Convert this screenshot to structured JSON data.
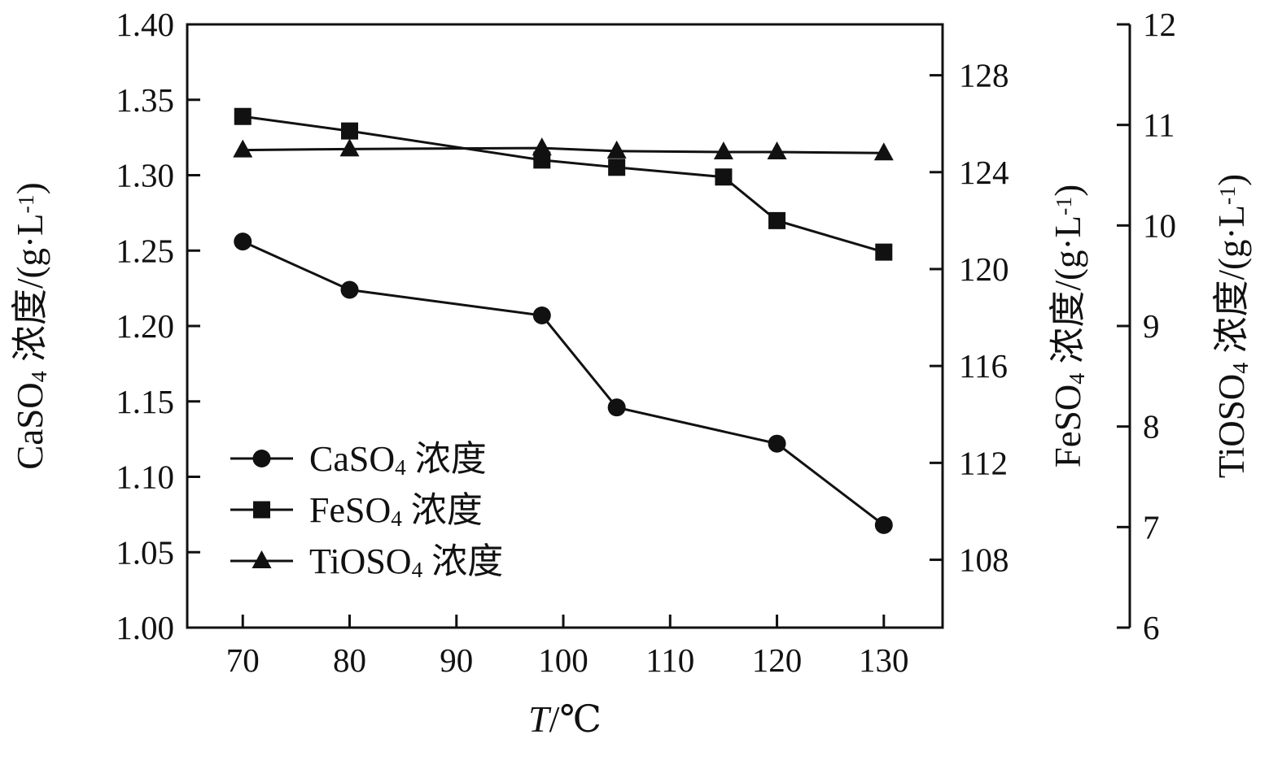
{
  "chart_data": {
    "type": "line",
    "title": "",
    "grid": false,
    "colors": {
      "foreground": "#111111",
      "background": "#ffffff"
    },
    "x_axis": {
      "label_italic": "T",
      "label_rest": "/℃",
      "ticks": [
        70,
        80,
        90,
        100,
        110,
        120,
        130
      ],
      "lim": [
        64.8,
        135.5
      ]
    },
    "left_axis": {
      "label": "CaSO_{4} 浓度/(g·L^{-1})",
      "ticks": [
        "1.00",
        "1.05",
        "1.10",
        "1.15",
        "1.20",
        "1.25",
        "1.30",
        "1.35",
        "1.40"
      ],
      "lim": [
        1.0,
        1.4
      ]
    },
    "fe_axis": {
      "label": "FeSO_{4} 浓度/(g·L^{-1})",
      "ticks": [
        108,
        112,
        116,
        120,
        124,
        128
      ],
      "lim": [
        105.2,
        130.1
      ]
    },
    "ti_axis": {
      "label": "TiOSO_{4} 浓度/(g·L^{-1})",
      "ticks": [
        6,
        7,
        8,
        9,
        10,
        11,
        12
      ],
      "lim": [
        6,
        12
      ]
    },
    "legend": {
      "position": "inside-lower-left",
      "entries": [
        "CaSO_{4} 浓度",
        "FeSO_{4} 浓度",
        "TiOSO_{4} 浓度"
      ]
    },
    "series": [
      {
        "name": "CaSO_{4} 浓度",
        "axis": "left",
        "marker": "circle",
        "x": [
          70,
          80,
          98,
          105,
          120,
          130
        ],
        "y": [
          1.256,
          1.224,
          1.207,
          1.146,
          1.122,
          1.068
        ]
      },
      {
        "name": "FeSO_{4} 浓度",
        "axis": "fe",
        "marker": "square",
        "x": [
          70,
          80,
          98,
          105,
          115,
          120,
          130
        ],
        "y": [
          126.3,
          125.7,
          124.5,
          124.2,
          123.8,
          122.0,
          120.7
        ]
      },
      {
        "name": "TiOSO_{4} 浓度",
        "axis": "ti",
        "marker": "triangle",
        "x": [
          70,
          80,
          98,
          105,
          115,
          120,
          130
        ],
        "y": [
          10.75,
          10.76,
          10.77,
          10.74,
          10.73,
          10.73,
          10.72
        ]
      }
    ]
  }
}
